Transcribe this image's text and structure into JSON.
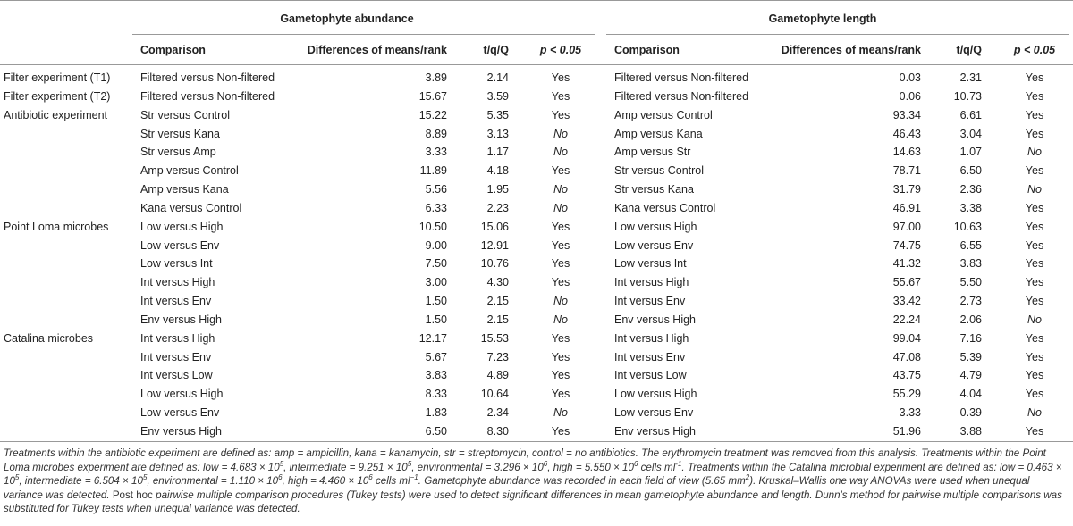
{
  "table": {
    "groups": [
      "Gametophyte abundance",
      "Gametophyte length"
    ],
    "columns": [
      "Comparison",
      "Differences of means/rank",
      "t/q/Q",
      "p < 0.05"
    ],
    "rows": [
      {
        "experiment": "Filter experiment (T1)",
        "abundance": [
          "Filtered versus Non-filtered",
          "3.89",
          "2.14",
          "Yes"
        ],
        "length": [
          "Filtered versus Non-filtered",
          "0.03",
          "2.31",
          "Yes"
        ]
      },
      {
        "experiment": "Filter experiment (T2)",
        "abundance": [
          "Filtered versus Non-filtered",
          "15.67",
          "3.59",
          "Yes"
        ],
        "length": [
          "Filtered versus Non-filtered",
          "0.06",
          "10.73",
          "Yes"
        ]
      },
      {
        "experiment": "Antibiotic experiment",
        "abundance": [
          "Str versus Control",
          "15.22",
          "5.35",
          "Yes"
        ],
        "length": [
          "Amp versus Control",
          "93.34",
          "6.61",
          "Yes"
        ]
      },
      {
        "abundance": [
          "Str versus Kana",
          "8.89",
          "3.13",
          "No"
        ],
        "length": [
          "Amp versus Kana",
          "46.43",
          "3.04",
          "Yes"
        ]
      },
      {
        "abundance": [
          "Str versus Amp",
          "3.33",
          "1.17",
          "No"
        ],
        "length": [
          "Amp versus Str",
          "14.63",
          "1.07",
          "No"
        ]
      },
      {
        "abundance": [
          "Amp versus Control",
          "11.89",
          "4.18",
          "Yes"
        ],
        "length": [
          "Str versus Control",
          "78.71",
          "6.50",
          "Yes"
        ]
      },
      {
        "abundance": [
          "Amp versus Kana",
          "5.56",
          "1.95",
          "No"
        ],
        "length": [
          "Str versus Kana",
          "31.79",
          "2.36",
          "No"
        ]
      },
      {
        "abundance": [
          "Kana versus Control",
          "6.33",
          "2.23",
          "No"
        ],
        "length": [
          "Kana versus Control",
          "46.91",
          "3.38",
          "Yes"
        ]
      },
      {
        "experiment": "Point Loma microbes",
        "abundance": [
          "Low versus High",
          "10.50",
          "15.06",
          "Yes"
        ],
        "length": [
          "Low versus High",
          "97.00",
          "10.63",
          "Yes"
        ]
      },
      {
        "abundance": [
          "Low versus Env",
          "9.00",
          "12.91",
          "Yes"
        ],
        "length": [
          "Low versus Env",
          "74.75",
          "6.55",
          "Yes"
        ]
      },
      {
        "abundance": [
          "Low versus Int",
          "7.50",
          "10.76",
          "Yes"
        ],
        "length": [
          "Low versus Int",
          "41.32",
          "3.83",
          "Yes"
        ]
      },
      {
        "abundance": [
          "Int versus High",
          "3.00",
          "4.30",
          "Yes"
        ],
        "length": [
          "Int versus High",
          "55.67",
          "5.50",
          "Yes"
        ]
      },
      {
        "abundance": [
          "Int versus Env",
          "1.50",
          "2.15",
          "No"
        ],
        "length": [
          "Int versus Env",
          "33.42",
          "2.73",
          "Yes"
        ]
      },
      {
        "abundance": [
          "Env versus High",
          "1.50",
          "2.15",
          "No"
        ],
        "length": [
          "Env versus High",
          "22.24",
          "2.06",
          "No"
        ]
      },
      {
        "experiment": "Catalina microbes",
        "abundance": [
          "Int versus High",
          "12.17",
          "15.53",
          "Yes"
        ],
        "length": [
          "Int versus High",
          "99.04",
          "7.16",
          "Yes"
        ]
      },
      {
        "abundance": [
          "Int versus Env",
          "5.67",
          "7.23",
          "Yes"
        ],
        "length": [
          "Int versus Env",
          "47.08",
          "5.39",
          "Yes"
        ]
      },
      {
        "abundance": [
          "Int versus Low",
          "3.83",
          "4.89",
          "Yes"
        ],
        "length": [
          "Int versus Low",
          "43.75",
          "4.79",
          "Yes"
        ]
      },
      {
        "abundance": [
          "Low versus High",
          "8.33",
          "10.64",
          "Yes"
        ],
        "length": [
          "Low versus High",
          "55.29",
          "4.04",
          "Yes"
        ]
      },
      {
        "abundance": [
          "Low versus Env",
          "1.83",
          "2.34",
          "No"
        ],
        "length": [
          "Low versus Env",
          "3.33",
          "0.39",
          "No"
        ]
      },
      {
        "abundance": [
          "Env versus High",
          "6.50",
          "8.30",
          "Yes"
        ],
        "length": [
          "Env versus High",
          "51.96",
          "3.88",
          "Yes"
        ]
      }
    ]
  },
  "footnote": {
    "parts": [
      "Treatments within the antibiotic experiment are defined as: amp = ampicillin, kana = kanamycin, str = streptomycin, control = no antibiotics. The erythromycin treatment was removed from this analysis. Treatments within the Point Loma microbes experiment are defined as: low = 4.683 × 10",
      "5",
      ", intermediate = 9.251 × 10",
      "5",
      ", environmental = 3.296 × 10",
      "6",
      ", high = 5.550 × 10",
      "6",
      " cells ml",
      "-1",
      ". Treatments within the Catalina microbial experiment are defined as: low = 0.463 × 10",
      "5",
      ", intermediate = 6.504 × 10",
      "5",
      ", environmental = 1.110 × 10",
      "6",
      ", high = 4.460 × 10",
      "6",
      " cells ml",
      "−1",
      ". Gametophyte abundance was recorded in each field of view (5.65 mm",
      "2",
      "). Kruskal–Wallis one way ANOVAs were used when unequal variance was detected. ",
      "Post hoc",
      " pairwise multiple comparison procedures (Tukey tests) were used to detect significant differences in mean gametophyte abundance and length. Dunn's method for pairwise multiple comparisons was substituted for Tukey tests when unequal variance was detected."
    ]
  }
}
